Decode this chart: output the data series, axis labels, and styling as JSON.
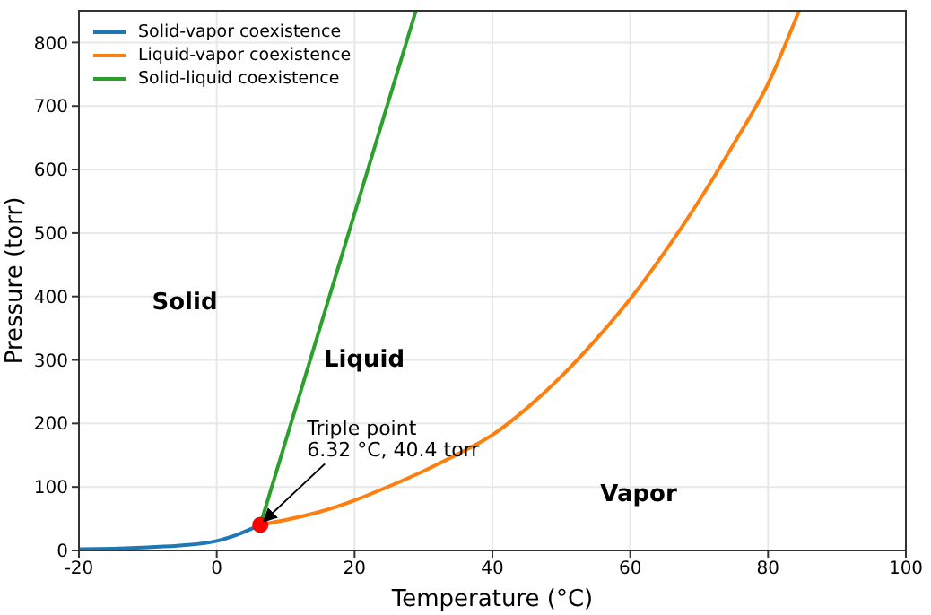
{
  "chart_data": {
    "type": "line",
    "xlabel": "Temperature (°C)",
    "ylabel": "Pressure (torr)",
    "xlim": [
      -20,
      100
    ],
    "xticks": [
      -20,
      0,
      20,
      40,
      60,
      80,
      100
    ],
    "ylim": [
      0,
      850
    ],
    "yticks": [
      0,
      100,
      200,
      300,
      400,
      500,
      600,
      700,
      800
    ],
    "grid": true,
    "legend": "top left",
    "marker": "none",
    "line_style": "solid",
    "series": [
      {
        "name": "Solid-vapor coexistence",
        "color": "#1f77b4",
        "x": [
          -20,
          -15,
          -10,
          -5,
          0,
          3,
          6.32
        ],
        "values": [
          2,
          3,
          5,
          8,
          15,
          25,
          40.4
        ]
      },
      {
        "name": "Liquid-vapor coexistence",
        "color": "#ff7f0e",
        "x": [
          6.32,
          10,
          15,
          20,
          25,
          30,
          35,
          40,
          45,
          50,
          55,
          60,
          65,
          70,
          75,
          80,
          84.5
        ],
        "values": [
          40.4,
          48,
          61,
          79,
          101,
          125,
          152,
          182,
          224,
          274,
          332,
          396,
          470,
          551,
          640,
          735,
          850
        ]
      },
      {
        "name": "Solid-liquid coexistence",
        "color": "#2ca02c",
        "x": [
          6.32,
          28.9
        ],
        "values": [
          40.4,
          850
        ]
      },
      {
        "type": "scatter",
        "color": "#ff0000",
        "marker": "circle",
        "x": [
          6.32
        ],
        "values": [
          40.4
        ]
      }
    ],
    "annotations": [
      "Solid",
      "Liquid",
      "Vapor",
      {
        "text": "Triple point\n6.32 °C, 40.4 torr",
        "x": 6.32,
        "y": 40.4
      }
    ]
  }
}
